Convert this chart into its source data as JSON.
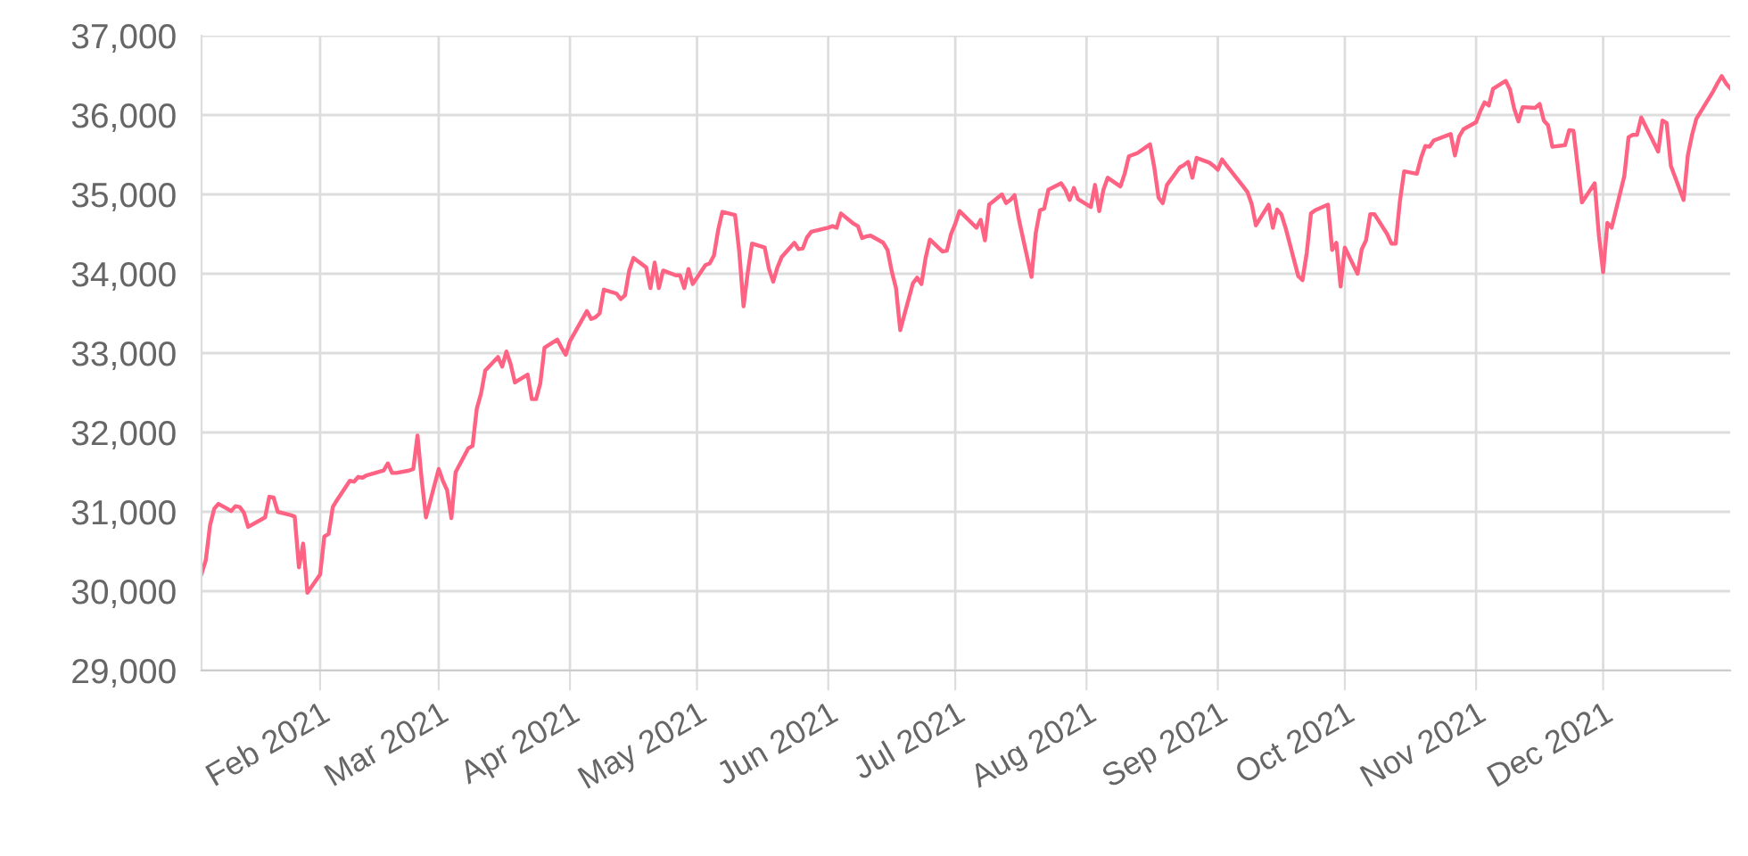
{
  "chart_data": {
    "type": "line",
    "x": [
      "2021-01-04",
      "2021-01-05",
      "2021-01-06",
      "2021-01-07",
      "2021-01-08",
      "2021-01-11",
      "2021-01-12",
      "2021-01-13",
      "2021-01-14",
      "2021-01-15",
      "2021-01-19",
      "2021-01-20",
      "2021-01-21",
      "2021-01-22",
      "2021-01-25",
      "2021-01-26",
      "2021-01-27",
      "2021-01-28",
      "2021-01-29",
      "2021-02-01",
      "2021-02-02",
      "2021-02-03",
      "2021-02-04",
      "2021-02-05",
      "2021-02-08",
      "2021-02-09",
      "2021-02-10",
      "2021-02-11",
      "2021-02-12",
      "2021-02-16",
      "2021-02-17",
      "2021-02-18",
      "2021-02-19",
      "2021-02-22",
      "2021-02-23",
      "2021-02-24",
      "2021-02-25",
      "2021-02-26",
      "2021-03-01",
      "2021-03-02",
      "2021-03-03",
      "2021-03-04",
      "2021-03-05",
      "2021-03-08",
      "2021-03-09",
      "2021-03-10",
      "2021-03-11",
      "2021-03-12",
      "2021-03-15",
      "2021-03-16",
      "2021-03-17",
      "2021-03-18",
      "2021-03-19",
      "2021-03-22",
      "2021-03-23",
      "2021-03-24",
      "2021-03-25",
      "2021-03-26",
      "2021-03-29",
      "2021-03-30",
      "2021-03-31",
      "2021-04-01",
      "2021-04-05",
      "2021-04-06",
      "2021-04-07",
      "2021-04-08",
      "2021-04-09",
      "2021-04-12",
      "2021-04-13",
      "2021-04-14",
      "2021-04-15",
      "2021-04-16",
      "2021-04-19",
      "2021-04-20",
      "2021-04-21",
      "2021-04-22",
      "2021-04-23",
      "2021-04-26",
      "2021-04-27",
      "2021-04-28",
      "2021-04-29",
      "2021-04-30",
      "2021-05-03",
      "2021-05-04",
      "2021-05-05",
      "2021-05-06",
      "2021-05-07",
      "2021-05-10",
      "2021-05-11",
      "2021-05-12",
      "2021-05-13",
      "2021-05-14",
      "2021-05-17",
      "2021-05-18",
      "2021-05-19",
      "2021-05-20",
      "2021-05-21",
      "2021-05-24",
      "2021-05-25",
      "2021-05-26",
      "2021-05-27",
      "2021-05-28",
      "2021-06-01",
      "2021-06-02",
      "2021-06-03",
      "2021-06-04",
      "2021-06-07",
      "2021-06-08",
      "2021-06-09",
      "2021-06-10",
      "2021-06-11",
      "2021-06-14",
      "2021-06-15",
      "2021-06-16",
      "2021-06-17",
      "2021-06-18",
      "2021-06-21",
      "2021-06-22",
      "2021-06-23",
      "2021-06-24",
      "2021-06-25",
      "2021-06-28",
      "2021-06-29",
      "2021-06-30",
      "2021-07-01",
      "2021-07-02",
      "2021-07-06",
      "2021-07-07",
      "2021-07-08",
      "2021-07-09",
      "2021-07-12",
      "2021-07-13",
      "2021-07-14",
      "2021-07-15",
      "2021-07-16",
      "2021-07-19",
      "2021-07-20",
      "2021-07-21",
      "2021-07-22",
      "2021-07-23",
      "2021-07-26",
      "2021-07-27",
      "2021-07-28",
      "2021-07-29",
      "2021-07-30",
      "2021-08-02",
      "2021-08-03",
      "2021-08-04",
      "2021-08-05",
      "2021-08-06",
      "2021-08-09",
      "2021-08-10",
      "2021-08-11",
      "2021-08-12",
      "2021-08-13",
      "2021-08-16",
      "2021-08-17",
      "2021-08-18",
      "2021-08-19",
      "2021-08-20",
      "2021-08-23",
      "2021-08-24",
      "2021-08-25",
      "2021-08-26",
      "2021-08-27",
      "2021-08-30",
      "2021-08-31",
      "2021-09-01",
      "2021-09-02",
      "2021-09-03",
      "2021-09-07",
      "2021-09-08",
      "2021-09-09",
      "2021-09-10",
      "2021-09-13",
      "2021-09-14",
      "2021-09-15",
      "2021-09-16",
      "2021-09-17",
      "2021-09-20",
      "2021-09-21",
      "2021-09-22",
      "2021-09-23",
      "2021-09-24",
      "2021-09-27",
      "2021-09-28",
      "2021-09-29",
      "2021-09-30",
      "2021-10-01",
      "2021-10-04",
      "2021-10-05",
      "2021-10-06",
      "2021-10-07",
      "2021-10-08",
      "2021-10-11",
      "2021-10-12",
      "2021-10-13",
      "2021-10-14",
      "2021-10-15",
      "2021-10-18",
      "2021-10-19",
      "2021-10-20",
      "2021-10-21",
      "2021-10-22",
      "2021-10-25",
      "2021-10-26",
      "2021-10-27",
      "2021-10-28",
      "2021-10-29",
      "2021-11-01",
      "2021-11-02",
      "2021-11-03",
      "2021-11-04",
      "2021-11-05",
      "2021-11-08",
      "2021-11-09",
      "2021-11-10",
      "2021-11-11",
      "2021-11-12",
      "2021-11-15",
      "2021-11-16",
      "2021-11-17",
      "2021-11-18",
      "2021-11-19",
      "2021-11-22",
      "2021-11-23",
      "2021-11-24",
      "2021-11-26",
      "2021-11-29",
      "2021-11-30",
      "2021-12-01",
      "2021-12-02",
      "2021-12-03",
      "2021-12-06",
      "2021-12-07",
      "2021-12-08",
      "2021-12-09",
      "2021-12-10",
      "2021-12-13",
      "2021-12-14",
      "2021-12-15",
      "2021-12-16",
      "2021-12-17",
      "2021-12-20",
      "2021-12-21",
      "2021-12-22",
      "2021-12-23",
      "2021-12-27",
      "2021-12-28",
      "2021-12-29",
      "2021-12-30",
      "2021-12-31"
    ],
    "series": [
      {
        "color": "#ff6384",
        "values": [
          30220,
          30390,
          30830,
          31040,
          31100,
          31010,
          31070,
          31060,
          30990,
          30810,
          30930,
          31190,
          31180,
          31000,
          30960,
          30940,
          30300,
          30600,
          29980,
          30210,
          30690,
          30720,
          31060,
          31150,
          31390,
          31380,
          31440,
          31430,
          31460,
          31520,
          31610,
          31490,
          31490,
          31520,
          31540,
          31960,
          31400,
          30930,
          31540,
          31390,
          31270,
          30920,
          31500,
          31800,
          31830,
          32300,
          32490,
          32780,
          32950,
          32830,
          33020,
          32860,
          32630,
          32730,
          32420,
          32420,
          32620,
          33070,
          33170,
          33070,
          32980,
          33150,
          33530,
          33430,
          33450,
          33500,
          33800,
          33750,
          33680,
          33730,
          34040,
          34200,
          34080,
          33820,
          34140,
          33820,
          34040,
          33980,
          33980,
          33820,
          34060,
          33870,
          34110,
          34130,
          34230,
          34550,
          34780,
          34740,
          34270,
          33590,
          34020,
          34380,
          34330,
          34060,
          33900,
          34080,
          34210,
          34390,
          34310,
          34320,
          34460,
          34530,
          34580,
          34600,
          34580,
          34760,
          34630,
          34600,
          34450,
          34470,
          34480,
          34390,
          34300,
          34030,
          33820,
          33290,
          33880,
          33950,
          33870,
          34200,
          34430,
          34280,
          34290,
          34500,
          34630,
          34790,
          34580,
          34680,
          34420,
          34870,
          35000,
          34890,
          34930,
          34990,
          34690,
          33960,
          34510,
          34800,
          34820,
          35060,
          35140,
          35060,
          34930,
          35080,
          34940,
          34840,
          35120,
          34790,
          35060,
          35210,
          35100,
          35260,
          35480,
          35500,
          35520,
          35630,
          35340,
          34960,
          34890,
          35120,
          35340,
          35370,
          35410,
          35210,
          35460,
          35400,
          35360,
          35310,
          35440,
          35370,
          35100,
          35030,
          34880,
          34610,
          34870,
          34580,
          34810,
          34750,
          34580,
          33970,
          33920,
          34260,
          34760,
          34800,
          34870,
          34300,
          34390,
          33840,
          34330,
          34000,
          34310,
          34420,
          34750,
          34750,
          34500,
          34380,
          34380,
          34910,
          35290,
          35260,
          35460,
          35610,
          35600,
          35680,
          35740,
          35760,
          35490,
          35730,
          35820,
          35910,
          36050,
          36160,
          36120,
          36330,
          36430,
          36320,
          36080,
          35920,
          36100,
          36090,
          36140,
          35930,
          35870,
          35600,
          35620,
          35810,
          35800,
          34900,
          35140,
          34480,
          34020,
          34640,
          34580,
          35230,
          35720,
          35750,
          35750,
          35970,
          35650,
          35540,
          35930,
          35900,
          35360,
          34930,
          35490,
          35750,
          35950,
          36300,
          36400,
          36490,
          36400,
          36340
        ]
      }
    ],
    "xlim": [
      "2021-01-04",
      "2021-12-31"
    ],
    "xticks": [
      {
        "value": "2021-02-01",
        "label": "Feb 2021"
      },
      {
        "value": "2021-03-01",
        "label": "Mar 2021"
      },
      {
        "value": "2021-04-01",
        "label": "Apr 2021"
      },
      {
        "value": "2021-05-01",
        "label": "May 2021"
      },
      {
        "value": "2021-06-01",
        "label": "Jun 2021"
      },
      {
        "value": "2021-07-01",
        "label": "Jul 2021"
      },
      {
        "value": "2021-08-01",
        "label": "Aug 2021"
      },
      {
        "value": "2021-09-01",
        "label": "Sep 2021"
      },
      {
        "value": "2021-10-01",
        "label": "Oct 2021"
      },
      {
        "value": "2021-11-01",
        "label": "Nov 2021"
      },
      {
        "value": "2021-12-01",
        "label": "Dec 2021"
      }
    ],
    "ylim": [
      29000,
      37000
    ],
    "yticks": [
      {
        "value": 29000,
        "label": "29,000"
      },
      {
        "value": 30000,
        "label": "30,000"
      },
      {
        "value": 31000,
        "label": "31,000"
      },
      {
        "value": 32000,
        "label": "32,000"
      },
      {
        "value": 33000,
        "label": "33,000"
      },
      {
        "value": 34000,
        "label": "34,000"
      },
      {
        "value": 35000,
        "label": "35,000"
      },
      {
        "value": 36000,
        "label": "36,000"
      },
      {
        "value": 37000,
        "label": "37,000"
      }
    ],
    "grid": true,
    "marker": "none",
    "line_style": "solid"
  }
}
